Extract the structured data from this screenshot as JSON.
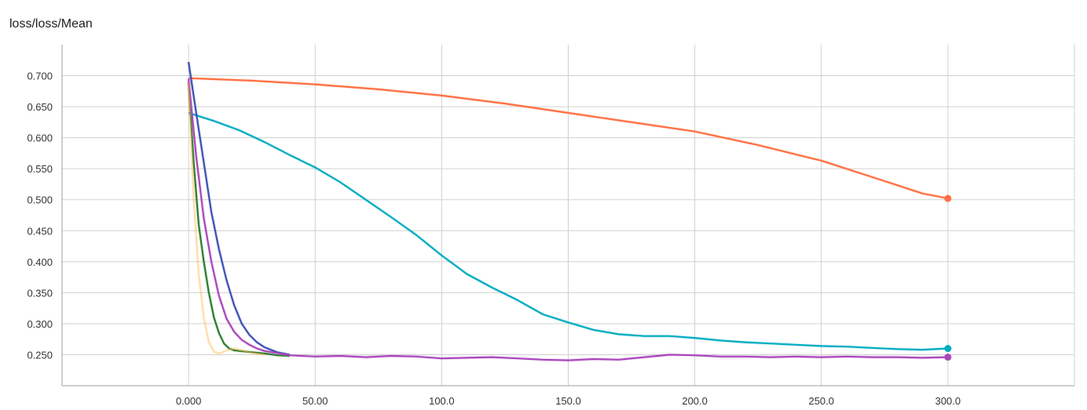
{
  "chart_data": {
    "type": "line",
    "title": "loss/loss/Mean",
    "xlabel": "",
    "ylabel": "",
    "xlim": [
      -50,
      350
    ],
    "ylim": [
      0.2,
      0.75
    ],
    "grid": true,
    "x_ticks": [
      0,
      50,
      100,
      150,
      200,
      250,
      300
    ],
    "x_tick_labels": [
      "0.000",
      "50.00",
      "100.0",
      "150.0",
      "200.0",
      "250.0",
      "300.0"
    ],
    "y_ticks": [
      0.25,
      0.3,
      0.35,
      0.4,
      0.45,
      0.5,
      0.55,
      0.6,
      0.65,
      0.7
    ],
    "y_tick_labels": [
      "0.250",
      "0.300",
      "0.350",
      "0.400",
      "0.450",
      "0.500",
      "0.550",
      "0.600",
      "0.650",
      "0.700"
    ],
    "series": [
      {
        "color": "#ff7043",
        "x": [
          0,
          25,
          50,
          75,
          100,
          125,
          150,
          175,
          200,
          225,
          250,
          275,
          290,
          300
        ],
        "y": [
          0.696,
          0.692,
          0.686,
          0.678,
          0.668,
          0.655,
          0.64,
          0.625,
          0.61,
          0.588,
          0.563,
          0.53,
          0.51,
          0.502
        ],
        "end_marker": true
      },
      {
        "color": "#00acc1",
        "x": [
          0,
          10,
          20,
          30,
          40,
          50,
          60,
          70,
          80,
          90,
          100,
          110,
          120,
          130,
          140,
          150,
          160,
          170,
          180,
          190,
          200,
          210,
          220,
          230,
          240,
          250,
          260,
          270,
          280,
          290,
          300
        ],
        "y": [
          0.64,
          0.627,
          0.612,
          0.593,
          0.572,
          0.552,
          0.528,
          0.5,
          0.472,
          0.443,
          0.41,
          0.38,
          0.358,
          0.338,
          0.315,
          0.302,
          0.29,
          0.283,
          0.28,
          0.28,
          0.277,
          0.273,
          0.27,
          0.268,
          0.266,
          0.264,
          0.263,
          0.261,
          0.259,
          0.258,
          0.26
        ],
        "end_marker": true
      },
      {
        "color": "#3f51b5",
        "x": [
          0,
          3,
          6,
          9,
          12,
          15,
          18,
          21,
          24,
          27,
          30,
          35,
          40
        ],
        "y": [
          0.722,
          0.64,
          0.56,
          0.48,
          0.42,
          0.37,
          0.33,
          0.3,
          0.282,
          0.27,
          0.262,
          0.254,
          0.25
        ]
      },
      {
        "color": "#2e7d32",
        "x": [
          0,
          2,
          4,
          6,
          8,
          10,
          12,
          14,
          16,
          18,
          20,
          25,
          30,
          35,
          40
        ],
        "y": [
          0.69,
          0.56,
          0.46,
          0.4,
          0.35,
          0.31,
          0.285,
          0.268,
          0.26,
          0.257,
          0.256,
          0.254,
          0.252,
          0.249,
          0.248
        ]
      },
      {
        "color": "#ab47bc",
        "x": [
          0,
          3,
          6,
          9,
          12,
          15,
          18,
          21,
          24,
          27,
          30,
          40,
          50,
          60,
          70,
          80,
          90,
          100,
          110,
          120,
          130,
          140,
          150,
          160,
          170,
          180,
          190,
          200,
          210,
          220,
          230,
          240,
          250,
          260,
          270,
          280,
          290,
          300
        ],
        "y": [
          0.695,
          0.57,
          0.47,
          0.4,
          0.345,
          0.308,
          0.287,
          0.274,
          0.266,
          0.26,
          0.256,
          0.249,
          0.247,
          0.248,
          0.246,
          0.248,
          0.247,
          0.244,
          0.245,
          0.246,
          0.244,
          0.242,
          0.241,
          0.243,
          0.242,
          0.246,
          0.25,
          0.249,
          0.247,
          0.247,
          0.246,
          0.247,
          0.246,
          0.247,
          0.246,
          0.246,
          0.245,
          0.246
        ],
        "end_marker": true
      },
      {
        "color": "#ffb74d",
        "x": [
          0,
          2,
          4,
          6,
          8,
          10,
          12,
          14,
          16,
          18,
          20,
          25,
          30
        ],
        "y": [
          0.69,
          0.5,
          0.38,
          0.31,
          0.27,
          0.255,
          0.252,
          0.255,
          0.258,
          0.26,
          0.258,
          0.253,
          0.25
        ],
        "faded": true
      }
    ]
  }
}
